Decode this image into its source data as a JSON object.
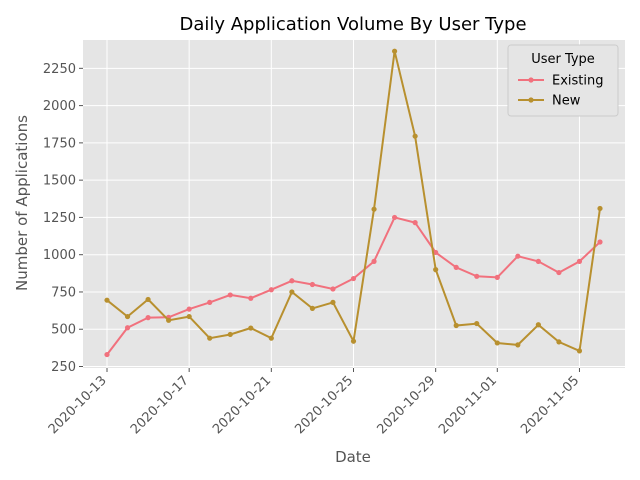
{
  "chart_data": {
    "type": "line",
    "title": "Daily Application Volume By User Type",
    "xlabel": "Date",
    "ylabel": "Number of Applications",
    "x": [
      "2020-10-13",
      "2020-10-14",
      "2020-10-15",
      "2020-10-16",
      "2020-10-17",
      "2020-10-18",
      "2020-10-19",
      "2020-10-20",
      "2020-10-21",
      "2020-10-22",
      "2020-10-23",
      "2020-10-24",
      "2020-10-25",
      "2020-10-26",
      "2020-10-27",
      "2020-10-28",
      "2020-10-29",
      "2020-10-30",
      "2020-10-31",
      "2020-11-01",
      "2020-11-02",
      "2020-11-03",
      "2020-11-04",
      "2020-11-05",
      "2020-11-06"
    ],
    "x_ticks": [
      "2020-10-13",
      "2020-10-17",
      "2020-10-21",
      "2020-10-25",
      "2020-10-29",
      "2020-11-01",
      "2020-11-05"
    ],
    "ylim": [
      240,
      2440
    ],
    "y_ticks": [
      250,
      500,
      750,
      1000,
      1250,
      1500,
      1750,
      2000,
      2250
    ],
    "grid": true,
    "legend": {
      "title": "User Type",
      "placement": "top-right"
    },
    "series": [
      {
        "name": "Existing",
        "color": "#f1717d",
        "values": [
          330,
          510,
          578,
          580,
          635,
          680,
          730,
          708,
          765,
          825,
          800,
          770,
          840,
          955,
          1250,
          1215,
          1015,
          915,
          855,
          848,
          990,
          955,
          880,
          955,
          1085
        ]
      },
      {
        "name": "New",
        "color": "#b8902f",
        "values": [
          695,
          585,
          700,
          560,
          585,
          440,
          465,
          508,
          440,
          750,
          640,
          680,
          420,
          1305,
          2365,
          1795,
          900,
          525,
          538,
          408,
          395,
          530,
          415,
          355,
          1310
        ]
      }
    ]
  }
}
